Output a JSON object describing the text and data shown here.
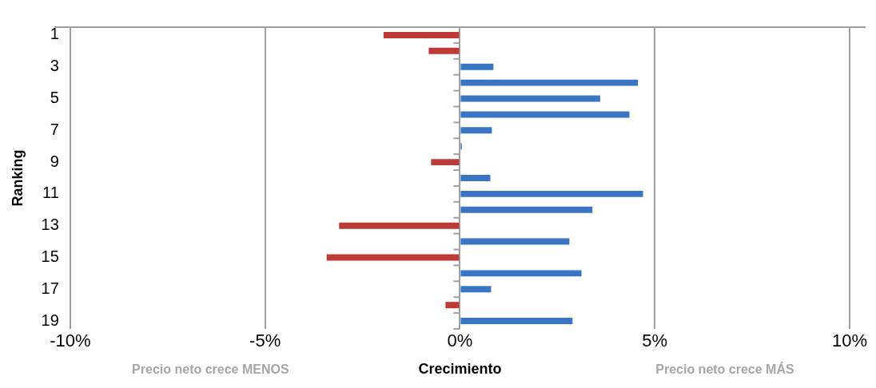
{
  "chart_data": {
    "type": "bar",
    "orientation": "horizontal",
    "xlabel": "Crecimiento",
    "ylabel": "Ranking",
    "categories": [
      "1",
      null,
      "3",
      null,
      "5",
      null,
      "7",
      null,
      "9",
      null,
      "11",
      null,
      "13",
      null,
      "15",
      null,
      "17",
      null,
      "19"
    ],
    "values": [
      -1.96,
      -0.8,
      0.86,
      4.57,
      3.6,
      4.35,
      0.82,
      0.05,
      -0.74,
      0.78,
      4.7,
      3.4,
      -3.1,
      2.81,
      -3.42,
      3.12,
      0.8,
      -0.37,
      2.89
    ],
    "colors": [
      "#be3a36",
      "#be3a36",
      "#3a75c4",
      "#3a75c4",
      "#3a75c4",
      "#3a75c4",
      "#3a75c4",
      "#3a75c4",
      "#be3a36",
      "#3a75c4",
      "#3a75c4",
      "#3a75c4",
      "#be3a36",
      "#3a75c4",
      "#be3a36",
      "#3a75c4",
      "#3a75c4",
      "#be3a36",
      "#3a75c4"
    ],
    "xlim": [
      -10,
      10
    ],
    "xticks": [
      {
        "value": -10,
        "label": "-10%"
      },
      {
        "value": -5,
        "label": "-5%"
      },
      {
        "value": 0,
        "label": "0%"
      },
      {
        "value": 5,
        "label": "5%"
      },
      {
        "value": 10,
        "label": "10%"
      }
    ],
    "grid": "x",
    "legend": false,
    "annotations": [
      "Precio neto crece MENOS",
      "Precio neto crece MÁS"
    ]
  }
}
